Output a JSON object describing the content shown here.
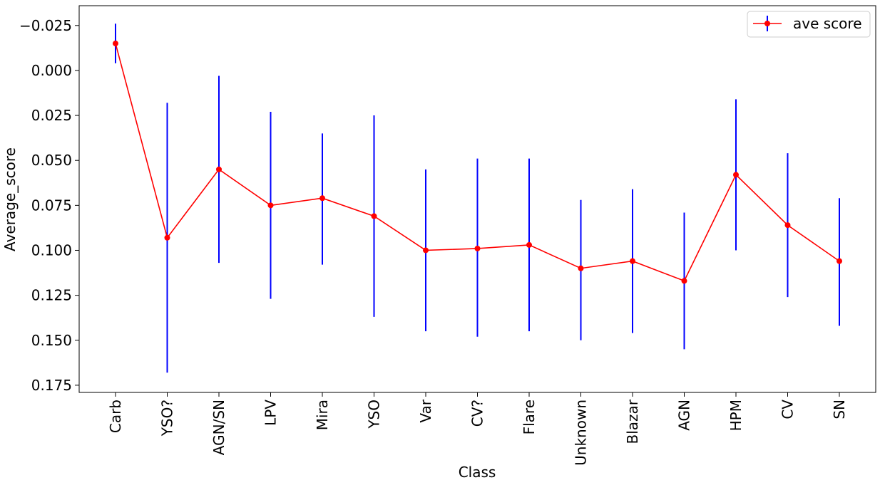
{
  "chart_data": {
    "type": "line",
    "xlabel": "Class",
    "ylabel": "Average_score",
    "categories": [
      "Carb",
      "YSO?",
      "AGN/SN",
      "LPV",
      "Mira",
      "YSO",
      "Var",
      "CV?",
      "Flare",
      "Unknown",
      "Blazar",
      "AGN",
      "HPM",
      "CV",
      "SN"
    ],
    "y_inverted": true,
    "ylim": [
      -0.036,
      0.179
    ],
    "yticks": [
      -0.025,
      0.0,
      0.025,
      0.05,
      0.075,
      0.1,
      0.125,
      0.15,
      0.175
    ],
    "ytick_labels": [
      "−0.025",
      "0.000",
      "0.025",
      "0.050",
      "0.075",
      "0.100",
      "0.125",
      "0.150",
      "0.175"
    ],
    "grid": false,
    "legend_position": "top-right",
    "series": [
      {
        "name": "ave score",
        "line_color": "#ff0000",
        "errorbar_color": "#0000ff",
        "values": [
          -0.015,
          0.093,
          0.055,
          0.075,
          0.071,
          0.081,
          0.1,
          0.099,
          0.097,
          0.11,
          0.106,
          0.117,
          0.058,
          0.086,
          0.106
        ],
        "err_upper": [
          -0.026,
          0.018,
          0.003,
          0.023,
          0.035,
          0.025,
          0.055,
          0.049,
          0.049,
          0.072,
          0.066,
          0.079,
          0.016,
          0.046,
          0.071
        ],
        "err_lower": [
          -0.004,
          0.168,
          0.107,
          0.127,
          0.108,
          0.137,
          0.145,
          0.148,
          0.145,
          0.15,
          0.146,
          0.155,
          0.1,
          0.126,
          0.142
        ]
      }
    ]
  }
}
